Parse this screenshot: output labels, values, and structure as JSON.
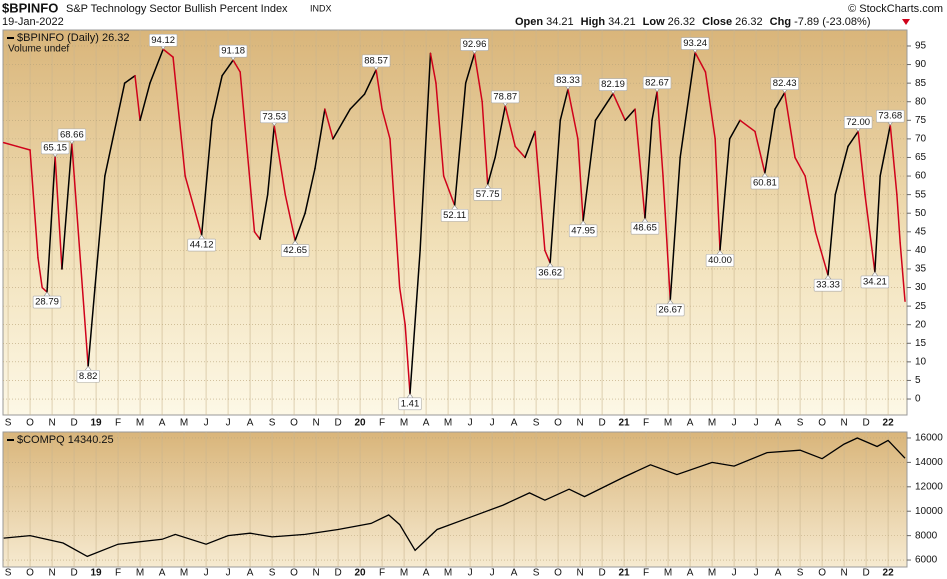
{
  "header": {
    "symbol": "$BPINFO",
    "name": "S&P Technology Sector Bullish Percent Index",
    "exchange": "INDX",
    "date": "19-Jan-2022",
    "copyright": "© StockCharts.com",
    "quote": [
      {
        "label": "Open",
        "value": 34.21
      },
      {
        "label": "High",
        "value": 34.21
      },
      {
        "label": "Low",
        "value": 26.32
      },
      {
        "label": "Close",
        "value": 26.32
      },
      {
        "label": "Chg",
        "value": "-7.89 (-23.08%)"
      }
    ]
  },
  "xaxis": {
    "xlim": [
      -0.23,
      40.86
    ],
    "xticks": [
      {
        "value": 0,
        "label": "S"
      },
      {
        "value": 1,
        "label": "O"
      },
      {
        "value": 2,
        "label": "N"
      },
      {
        "value": 3,
        "label": "D"
      },
      {
        "value": 4,
        "label": "19"
      },
      {
        "value": 5,
        "label": "F"
      },
      {
        "value": 6,
        "label": "M"
      },
      {
        "value": 7,
        "label": "A"
      },
      {
        "value": 8,
        "label": "M"
      },
      {
        "value": 9,
        "label": "J"
      },
      {
        "value": 10,
        "label": "J"
      },
      {
        "value": 11,
        "label": "A"
      },
      {
        "value": 12,
        "label": "S"
      },
      {
        "value": 13,
        "label": "O"
      },
      {
        "value": 14,
        "label": "N"
      },
      {
        "value": 15,
        "label": "D"
      },
      {
        "value": 16,
        "label": "20"
      },
      {
        "value": 17,
        "label": "F"
      },
      {
        "value": 18,
        "label": "M"
      },
      {
        "value": 19,
        "label": "A"
      },
      {
        "value": 20,
        "label": "M"
      },
      {
        "value": 21,
        "label": "J"
      },
      {
        "value": 22,
        "label": "J"
      },
      {
        "value": 23,
        "label": "A"
      },
      {
        "value": 24,
        "label": "S"
      },
      {
        "value": 25,
        "label": "O"
      },
      {
        "value": 26,
        "label": "N"
      },
      {
        "value": 27,
        "label": "D"
      },
      {
        "value": 28,
        "label": "21"
      },
      {
        "value": 29,
        "label": "F"
      },
      {
        "value": 30,
        "label": "M"
      },
      {
        "value": 31,
        "label": "A"
      },
      {
        "value": 32,
        "label": "M"
      },
      {
        "value": 33,
        "label": "J"
      },
      {
        "value": 34,
        "label": "J"
      },
      {
        "value": 35,
        "label": "A"
      },
      {
        "value": 36,
        "label": "S"
      },
      {
        "value": 37,
        "label": "O"
      },
      {
        "value": 38,
        "label": "N"
      },
      {
        "value": 39,
        "label": "D"
      },
      {
        "value": 40,
        "label": "22"
      }
    ]
  },
  "chart_data": [
    {
      "type": "updown_line",
      "legend": "$BPINFO (Daily) 26.32",
      "sublegend": "Volume undef",
      "up_color": "#000000",
      "down_color": "#d0021b",
      "grid": true,
      "ylim": [
        -4.3,
        99.3
      ],
      "yticks": [
        0,
        5,
        10,
        15,
        20,
        25,
        30,
        35,
        40,
        45,
        50,
        55,
        60,
        65,
        70,
        75,
        80,
        85,
        90,
        95
      ],
      "x": [
        -0.2,
        0.4,
        1.0,
        1.36,
        1.55,
        1.77,
        2.14,
        2.45,
        2.9,
        3.64,
        3.95,
        4.4,
        5.3,
        5.77,
        6.0,
        6.45,
        7.05,
        7.5,
        8.05,
        8.8,
        9.27,
        9.73,
        10.23,
        10.55,
        11.2,
        11.45,
        11.8,
        12.1,
        12.6,
        13.05,
        13.5,
        13.95,
        14.4,
        14.77,
        15.55,
        16.2,
        16.73,
        17.0,
        17.36,
        17.8,
        18.05,
        18.27,
        18.73,
        19.2,
        19.45,
        19.8,
        20.3,
        20.8,
        21.2,
        21.55,
        21.8,
        22.14,
        22.6,
        23.05,
        23.5,
        23.95,
        24.4,
        24.64,
        25.1,
        25.45,
        25.9,
        26.14,
        26.7,
        27.5,
        28.05,
        28.5,
        28.95,
        29.27,
        29.5,
        29.77,
        30.1,
        30.55,
        31.23,
        31.7,
        32.14,
        32.36,
        32.8,
        33.27,
        33.95,
        34.4,
        34.86,
        35.3,
        35.77,
        36.23,
        36.7,
        37.27,
        37.6,
        38.18,
        38.64,
        38.95,
        39.4,
        39.64,
        40.1,
        40.4,
        40.55,
        40.77
      ],
      "values": [
        69,
        68,
        67,
        38,
        30,
        28.79,
        65.15,
        35,
        68.66,
        8.82,
        30,
        60,
        85,
        87,
        75,
        85,
        94.12,
        92,
        60,
        44.12,
        75,
        87,
        91.18,
        88,
        45,
        43,
        55,
        73.53,
        55,
        42.65,
        50,
        62,
        78,
        70,
        78,
        82,
        88.57,
        78,
        70,
        30,
        20,
        1.41,
        40,
        93,
        85,
        60,
        52.11,
        85,
        92.96,
        80,
        57.75,
        65,
        78.87,
        68,
        65,
        72,
        40,
        36.62,
        75,
        83.33,
        70,
        47.95,
        75,
        82.19,
        75,
        78,
        48.65,
        75,
        82.67,
        60,
        26.67,
        65,
        93.24,
        88,
        70,
        40.0,
        70,
        75,
        72,
        60.81,
        78,
        82.43,
        65,
        60,
        45,
        33.33,
        55,
        68,
        72.0,
        55,
        34.21,
        60,
        73.68,
        55,
        42,
        26.32
      ],
      "annotations": [
        {
          "x": 1.77,
          "value": 28.79,
          "position": "below"
        },
        {
          "x": 2.14,
          "value": 65.15,
          "position": "above"
        },
        {
          "x": 2.9,
          "value": 68.66,
          "position": "above"
        },
        {
          "x": 3.64,
          "value": 8.82,
          "position": "below"
        },
        {
          "x": 7.05,
          "value": 94.12,
          "position": "above"
        },
        {
          "x": 8.8,
          "value": 44.12,
          "position": "below"
        },
        {
          "x": 10.23,
          "value": 91.18,
          "position": "above"
        },
        {
          "x": 12.1,
          "value": 73.53,
          "position": "above"
        },
        {
          "x": 13.05,
          "value": 42.65,
          "position": "below"
        },
        {
          "x": 16.73,
          "value": 88.57,
          "position": "above"
        },
        {
          "x": 18.27,
          "value": 1.41,
          "position": "below"
        },
        {
          "x": 20.3,
          "value": 52.11,
          "position": "below"
        },
        {
          "x": 21.2,
          "value": 92.96,
          "position": "above"
        },
        {
          "x": 21.8,
          "value": 57.75,
          "position": "below"
        },
        {
          "x": 22.6,
          "value": 78.87,
          "position": "above"
        },
        {
          "x": 24.64,
          "value": 36.62,
          "position": "below"
        },
        {
          "x": 25.45,
          "value": 83.33,
          "position": "above"
        },
        {
          "x": 26.14,
          "value": 47.95,
          "position": "below"
        },
        {
          "x": 27.5,
          "value": 82.19,
          "position": "above"
        },
        {
          "x": 28.95,
          "value": 48.65,
          "position": "below"
        },
        {
          "x": 29.5,
          "value": 82.67,
          "position": "above"
        },
        {
          "x": 30.1,
          "value": 26.67,
          "position": "below"
        },
        {
          "x": 31.23,
          "value": 93.24,
          "position": "above"
        },
        {
          "x": 32.36,
          "value": "40.00",
          "position": "below"
        },
        {
          "x": 34.4,
          "value": 60.81,
          "position": "below"
        },
        {
          "x": 35.3,
          "value": 82.43,
          "position": "above"
        },
        {
          "x": 37.27,
          "value": 33.33,
          "position": "below"
        },
        {
          "x": 38.64,
          "value": "72.00",
          "position": "above"
        },
        {
          "x": 39.4,
          "value": 34.21,
          "position": "below"
        },
        {
          "x": 40.1,
          "value": 73.68,
          "position": "above"
        }
      ]
    },
    {
      "type": "line",
      "legend": "$COMPQ 14340.25",
      "color": "#000000",
      "grid": true,
      "ylim": [
        5430,
        16490
      ],
      "yticks": [
        6000,
        8000,
        10000,
        12000,
        14000,
        16000
      ],
      "x": [
        -0.2,
        1.0,
        2.5,
        3.6,
        5,
        7,
        7.6,
        9,
        10,
        11,
        12,
        13.5,
        15,
        16.5,
        17.3,
        17.8,
        18.5,
        19.5,
        21,
        22.5,
        23.7,
        24.4,
        25.5,
        26.2,
        28,
        29.2,
        30.4,
        32,
        33,
        34.5,
        36,
        37,
        38,
        38.6,
        39.5,
        40,
        40.77
      ],
      "values": [
        7800,
        8000,
        7400,
        6300,
        7300,
        7700,
        8100,
        7300,
        8000,
        8200,
        7900,
        8100,
        8500,
        9000,
        9700,
        8900,
        6800,
        8500,
        9500,
        10500,
        11500,
        10900,
        11800,
        11200,
        12800,
        13800,
        13000,
        14000,
        13700,
        14800,
        15000,
        14300,
        15500,
        16000,
        15300,
        15800,
        14340.25
      ]
    }
  ]
}
